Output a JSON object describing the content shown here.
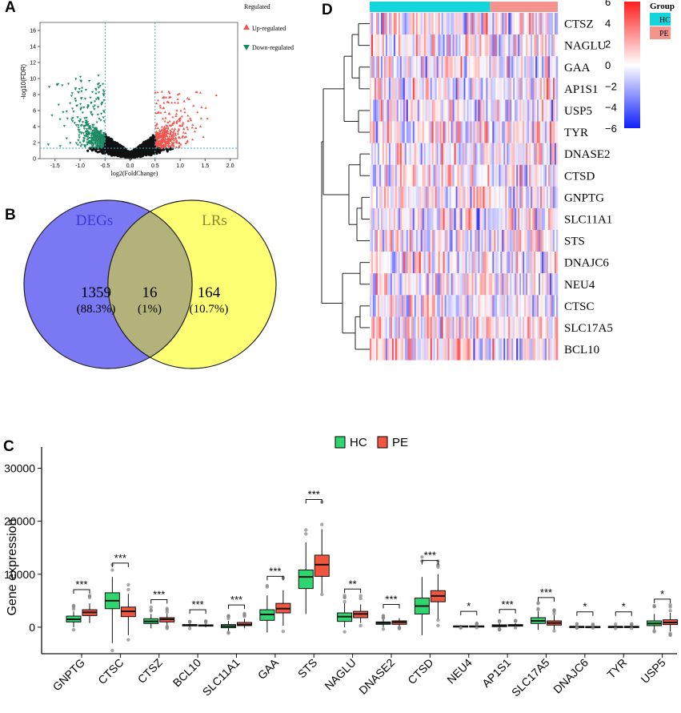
{
  "panels": {
    "a": "A",
    "b": "B",
    "c": "C",
    "d": "D"
  },
  "colors": {
    "up": "#f0544c",
    "down": "#1a8a62",
    "ns": "#111111",
    "hc": "#2fd56e",
    "pe": "#f0553f",
    "hc_bar": "#13d6dc",
    "pe_bar": "#f5948c",
    "venn_left": "#7a78f2",
    "venn_right": "#ffff73",
    "venn_mid": "#b2b27a",
    "threshold": "#3aa6c8"
  },
  "volcano": {
    "xlabel": "log2(FoldChange)",
    "ylabel": "-log10(FDR)",
    "xticks": [
      -1.5,
      -1.0,
      -0.5,
      0.0,
      0.5,
      1.0,
      1.5,
      2.0
    ],
    "yticks": [
      0,
      2,
      4,
      6,
      8,
      10,
      12,
      14,
      16
    ],
    "xlim": [
      -1.8,
      2.15
    ],
    "ylim": [
      0,
      17
    ],
    "fc_threshold": 0.5,
    "fdr_threshold": 1.3,
    "legend_title": "Regulated",
    "legend_items": [
      "Up-regulated",
      "Down-regulated"
    ]
  },
  "venn": {
    "left_label": "DEGs",
    "right_label": "LRs",
    "left_count": "1359",
    "left_pct": "(88.3%)",
    "mid_count": "16",
    "mid_pct": "(1%)",
    "right_count": "164",
    "right_pct": "(10.7%)"
  },
  "chart_data": [
    {
      "type": "heatmap",
      "title": "",
      "rows": [
        "CTSZ",
        "NAGLU",
        "GAA",
        "AP1S1",
        "USP5",
        "TYR",
        "DNASE2",
        "CTSD",
        "GNPTG",
        "SLC11A1",
        "STS",
        "DNAJC6",
        "NEU4",
        "CTSC",
        "SLC17A5",
        "BCL10"
      ],
      "groups": [
        {
          "name": "HC",
          "fraction": 0.64
        },
        {
          "name": "PE",
          "fraction": 0.36
        }
      ],
      "legend_title": "Group",
      "colorbar_ticks": [
        6,
        4,
        2,
        0,
        -2,
        -4,
        -6
      ],
      "color_range": [
        -6,
        6
      ]
    },
    {
      "type": "box",
      "ylabel": "Gene expression",
      "xlabel": "",
      "ylim": [
        -5000,
        34000
      ],
      "yticks": [
        0,
        10000,
        20000,
        30000
      ],
      "legend": [
        "HC",
        "PE"
      ],
      "categories": [
        "GNPTG",
        "CTSC",
        "CTSZ",
        "BCL10",
        "SLC11A1",
        "GAA",
        "STS",
        "NAGLU",
        "DNASE2",
        "CTSD",
        "NEU4",
        "AP1S1",
        "SLC17A5",
        "DNAJC6",
        "TYR",
        "USP5"
      ],
      "significance": [
        "***",
        "***",
        "***",
        "***",
        "***",
        "***",
        "***",
        "**",
        "***",
        "***",
        "*",
        "***",
        "***",
        "*",
        "*",
        "*"
      ],
      "series": [
        {
          "name": "HC",
          "boxes": [
            [
              0,
              1000,
              1500,
              2100,
              3000
            ],
            [
              -3000,
              3500,
              5000,
              6500,
              9500
            ],
            [
              -200,
              700,
              1100,
              1600,
              2500
            ],
            [
              0,
              250,
              400,
              500,
              700
            ],
            [
              -800,
              -100,
              200,
              500,
              1200
            ],
            [
              -1000,
              1300,
              2400,
              3300,
              6000
            ],
            [
              2500,
              7300,
              9500,
              10800,
              16000
            ],
            [
              0,
              1100,
              2000,
              2700,
              4600
            ],
            [
              0,
              550,
              800,
              1000,
              1500
            ],
            [
              -1500,
              2500,
              4000,
              5500,
              9500
            ],
            [
              0,
              80,
              150,
              250,
              400
            ],
            [
              -200,
              100,
              300,
              450,
              700
            ],
            [
              -500,
              700,
              1200,
              1800,
              3000
            ],
            [
              0,
              50,
              100,
              150,
              300
            ],
            [
              -100,
              50,
              100,
              150,
              300
            ],
            [
              -500,
              300,
              700,
              1200,
              2500
            ]
          ]
        },
        {
          "name": "PE",
          "boxes": [
            [
              800,
              2200,
              2800,
              3300,
              4500
            ],
            [
              -1500,
              2000,
              3000,
              3800,
              6300
            ],
            [
              300,
              1000,
              1500,
              1800,
              2600
            ],
            [
              0,
              200,
              300,
              450,
              700
            ],
            [
              -200,
              300,
              500,
              900,
              1600
            ],
            [
              300,
              2700,
              3500,
              4500,
              7000
            ],
            [
              6500,
              9600,
              11800,
              13600,
              18500
            ],
            [
              800,
              1800,
              2500,
              3000,
              4300
            ],
            [
              100,
              550,
              950,
              1200,
              1700
            ],
            [
              1500,
              4800,
              5900,
              6900,
              10000
            ],
            [
              0,
              80,
              150,
              250,
              400
            ],
            [
              0,
              200,
              350,
              500,
              750
            ],
            [
              -500,
              400,
              800,
              1200,
              2300
            ],
            [
              0,
              40,
              90,
              130,
              250
            ],
            [
              -50,
              50,
              100,
              150,
              300
            ],
            [
              -800,
              500,
              900,
              1400,
              2700
            ]
          ]
        }
      ]
    }
  ]
}
